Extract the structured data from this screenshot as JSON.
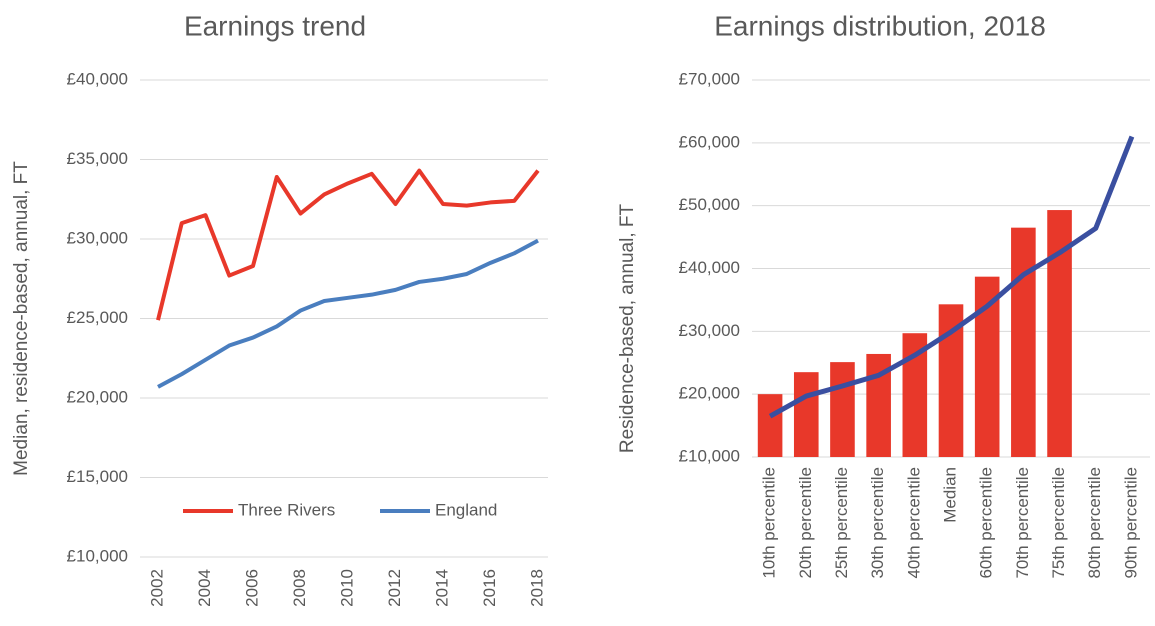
{
  "chart_data": [
    {
      "type": "line",
      "title": "Earnings trend",
      "ylabel": "Median, residence-based, annual, FT",
      "x": [
        2002,
        2003,
        2004,
        2005,
        2006,
        2007,
        2008,
        2009,
        2010,
        2011,
        2012,
        2013,
        2014,
        2015,
        2016,
        2017,
        2018
      ],
      "xlim": [
        2002,
        2018
      ],
      "xticks": [
        2002,
        2004,
        2006,
        2008,
        2010,
        2012,
        2014,
        2016,
        2018
      ],
      "ylim": [
        10000,
        40000
      ],
      "yticks": [
        {
          "value": 10000,
          "label": "£10,000"
        },
        {
          "value": 15000,
          "label": "£15,000"
        },
        {
          "value": 20000,
          "label": "£20,000"
        },
        {
          "value": 25000,
          "label": "£25,000"
        },
        {
          "value": 30000,
          "label": "£30,000"
        },
        {
          "value": 35000,
          "label": "£35,000"
        },
        {
          "value": 40000,
          "label": "£40,000"
        }
      ],
      "grid": true,
      "legend": "bottom",
      "series": [
        {
          "name": "Three Rivers",
          "color": "#e8382a",
          "values": [
            24900,
            31000,
            31500,
            27700,
            28300,
            33900,
            31600,
            32800,
            33500,
            34100,
            32200,
            34300,
            32200,
            32100,
            32300,
            32400,
            34300
          ]
        },
        {
          "name": "England",
          "color": "#4a7ebf",
          "values": [
            20700,
            21500,
            22400,
            23300,
            23800,
            24500,
            25500,
            26100,
            26300,
            26500,
            26800,
            27300,
            27500,
            27800,
            28500,
            29100,
            29900
          ]
        }
      ]
    },
    {
      "type": "combo",
      "title": "Earnings distribution, 2018",
      "ylabel": "Residence-based, annual, FT",
      "categories": [
        "10th percentile",
        "20th percentile",
        "25th percentile",
        "30th percentile",
        "40th percentile",
        "Median",
        "60th percentile",
        "70th percentile",
        "75th percentile",
        "80th percentile",
        "90th percentile"
      ],
      "ylim": [
        10000,
        70000
      ],
      "yticks": [
        {
          "value": 10000,
          "label": "£10,000"
        },
        {
          "value": 20000,
          "label": "£20,000"
        },
        {
          "value": 30000,
          "label": "£30,000"
        },
        {
          "value": 40000,
          "label": "£40,000"
        },
        {
          "value": 50000,
          "label": "£50,000"
        },
        {
          "value": 60000,
          "label": "£60,000"
        },
        {
          "value": 70000,
          "label": "£70,000"
        }
      ],
      "grid": true,
      "series": [
        {
          "type": "bar",
          "color": "#e8382a",
          "values": [
            20000,
            23500,
            25100,
            26400,
            29700,
            34300,
            38700,
            46500,
            49300,
            null,
            null
          ]
        },
        {
          "type": "line",
          "color": "#3a4fa0",
          "values": [
            16500,
            19700,
            21300,
            23000,
            26200,
            29900,
            34000,
            39000,
            42500,
            46400,
            61000
          ]
        }
      ]
    }
  ]
}
